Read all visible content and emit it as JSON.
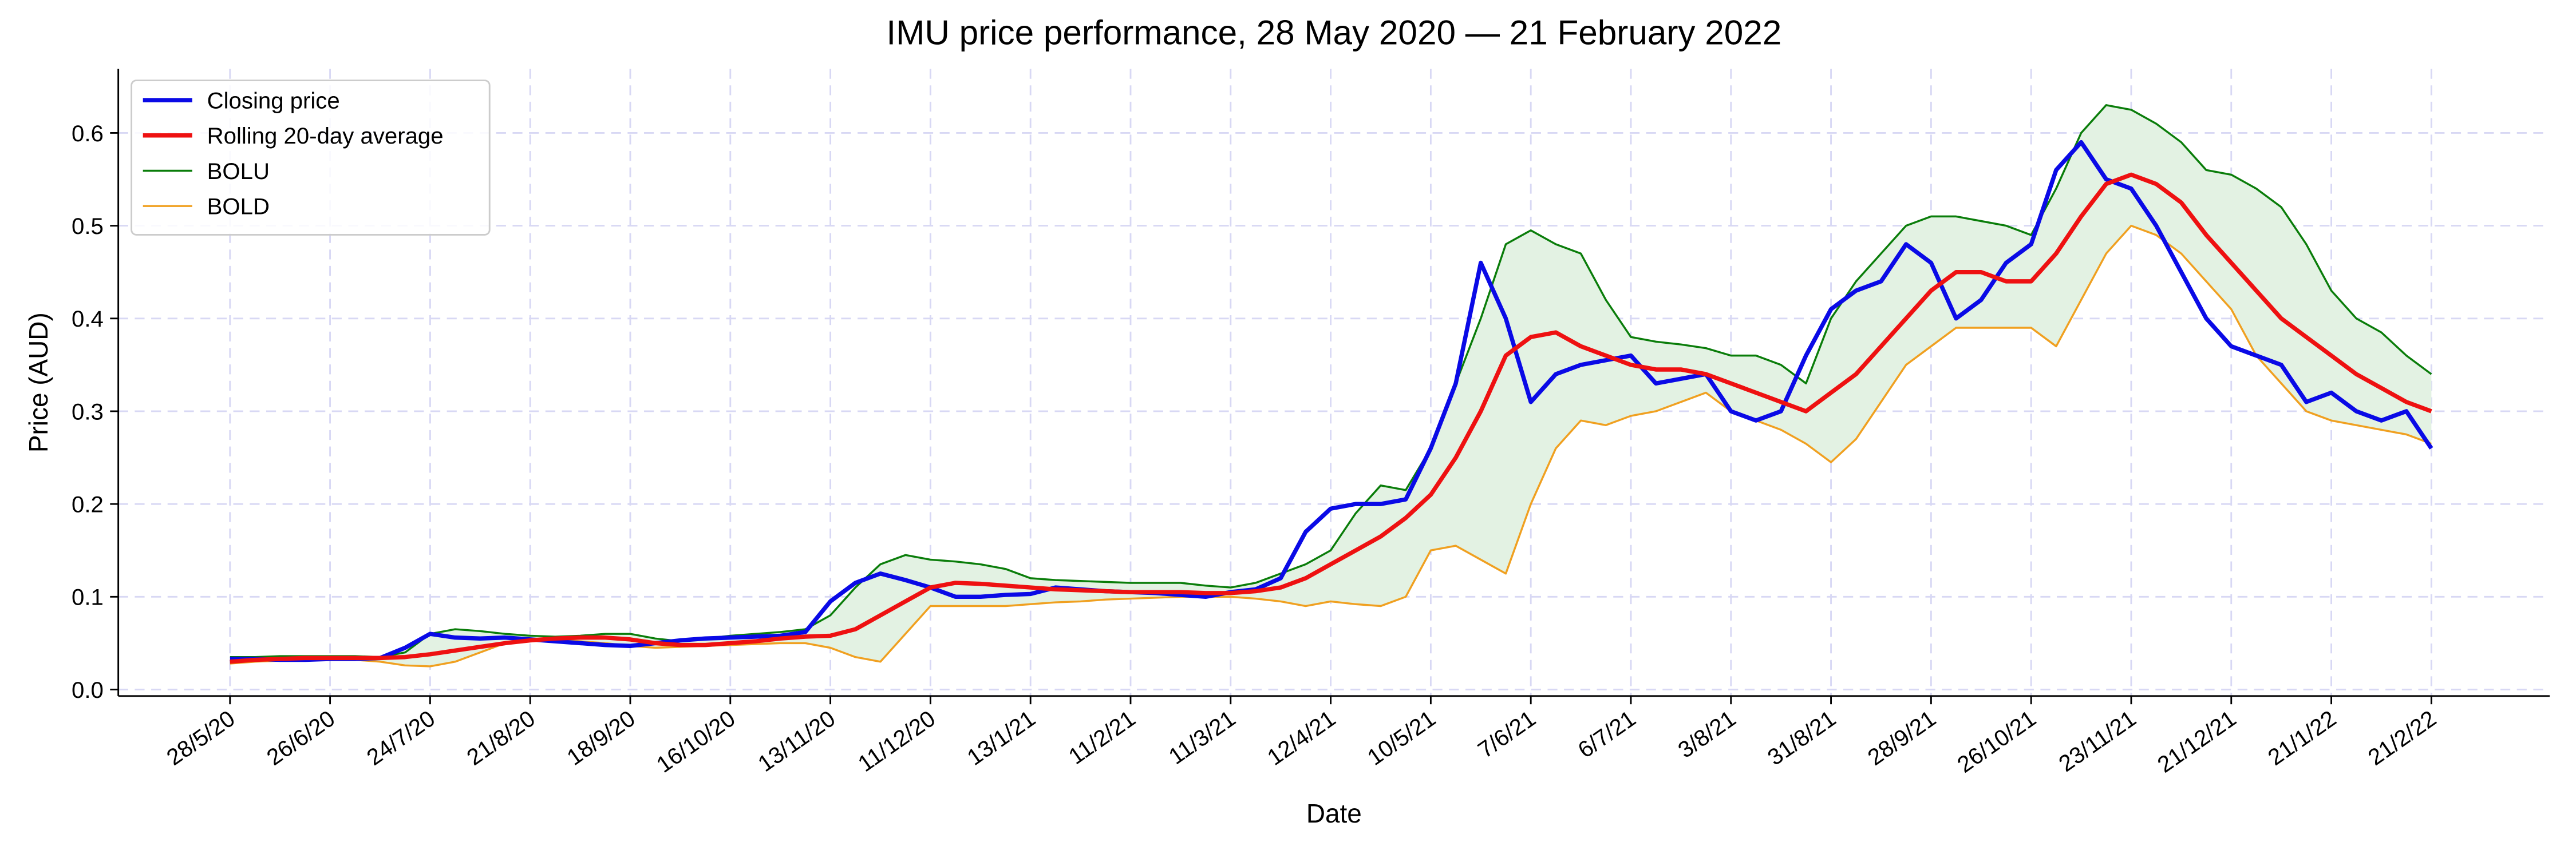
{
  "chart_data": {
    "type": "line",
    "title": "IMU price performance, 28 May 2020 — 21 February 2022",
    "xlabel": "Date",
    "ylabel": "Price (AUD)",
    "categories": [
      "28/5/20",
      null,
      null,
      null,
      "26/6/20",
      null,
      null,
      null,
      "24/7/20",
      null,
      null,
      null,
      "21/8/20",
      null,
      null,
      null,
      "18/9/20",
      null,
      null,
      null,
      "16/10/20",
      null,
      null,
      null,
      "13/11/20",
      null,
      null,
      null,
      "11/12/20",
      null,
      null,
      null,
      "13/1/21",
      null,
      null,
      null,
      "11/2/21",
      null,
      null,
      null,
      "11/3/21",
      null,
      null,
      null,
      "12/4/21",
      null,
      null,
      null,
      "10/5/21",
      null,
      null,
      null,
      "7/6/21",
      null,
      null,
      null,
      "6/7/21",
      null,
      null,
      null,
      "3/8/21",
      null,
      null,
      null,
      "31/8/21",
      null,
      null,
      null,
      "28/9/21",
      null,
      null,
      null,
      "26/10/21",
      null,
      null,
      null,
      "23/11/21",
      null,
      null,
      null,
      "21/12/21",
      null,
      null,
      null,
      "21/1/22",
      null,
      null,
      null,
      "21/2/22"
    ],
    "series": [
      {
        "name": "Closing price",
        "color": "#0a0ae6",
        "values": [
          0.033,
          0.033,
          0.032,
          0.032,
          0.033,
          0.033,
          0.034,
          0.045,
          0.06,
          0.056,
          0.055,
          0.056,
          0.054,
          0.052,
          0.05,
          0.048,
          0.047,
          0.05,
          0.053,
          0.055,
          0.056,
          0.057,
          0.058,
          0.062,
          0.095,
          0.115,
          0.125,
          0.118,
          0.11,
          0.1,
          0.1,
          0.102,
          0.103,
          0.11,
          0.108,
          0.106,
          0.105,
          0.104,
          0.102,
          0.1,
          0.105,
          0.108,
          0.12,
          0.17,
          0.195,
          0.2,
          0.2,
          0.205,
          0.26,
          0.33,
          0.46,
          0.4,
          0.31,
          0.34,
          0.35,
          0.355,
          0.36,
          0.33,
          0.335,
          0.34,
          0.3,
          0.29,
          0.3,
          0.36,
          0.41,
          0.43,
          0.44,
          0.48,
          0.46,
          0.4,
          0.42,
          0.46,
          0.48,
          0.56,
          0.59,
          0.55,
          0.54,
          0.5,
          0.45,
          0.4,
          0.37,
          0.36,
          0.35,
          0.31,
          0.32,
          0.3,
          0.29,
          0.3,
          0.26
        ]
      },
      {
        "name": "Rolling 20-day average",
        "color": "#ee1111",
        "values": [
          0.03,
          0.032,
          0.033,
          0.034,
          0.034,
          0.034,
          0.034,
          0.035,
          0.038,
          0.042,
          0.046,
          0.05,
          0.053,
          0.055,
          0.056,
          0.056,
          0.054,
          0.05,
          0.048,
          0.048,
          0.05,
          0.052,
          0.055,
          0.057,
          0.058,
          0.065,
          0.08,
          0.095,
          0.11,
          0.115,
          0.114,
          0.112,
          0.11,
          0.108,
          0.107,
          0.106,
          0.105,
          0.105,
          0.105,
          0.104,
          0.104,
          0.106,
          0.11,
          0.12,
          0.135,
          0.15,
          0.165,
          0.185,
          0.21,
          0.25,
          0.3,
          0.36,
          0.38,
          0.385,
          0.37,
          0.36,
          0.35,
          0.345,
          0.345,
          0.34,
          0.33,
          0.32,
          0.31,
          0.3,
          0.32,
          0.34,
          0.37,
          0.4,
          0.43,
          0.45,
          0.45,
          0.44,
          0.44,
          0.47,
          0.51,
          0.545,
          0.555,
          0.545,
          0.525,
          0.49,
          0.46,
          0.43,
          0.4,
          0.38,
          0.36,
          0.34,
          0.325,
          0.31,
          0.3
        ]
      },
      {
        "name": "BOLU",
        "color": "#0a7d0a",
        "values": [
          0.035,
          0.035,
          0.036,
          0.036,
          0.036,
          0.036,
          0.035,
          0.04,
          0.06,
          0.065,
          0.063,
          0.06,
          0.058,
          0.057,
          0.058,
          0.06,
          0.06,
          0.055,
          0.052,
          0.055,
          0.058,
          0.06,
          0.062,
          0.065,
          0.08,
          0.11,
          0.135,
          0.145,
          0.14,
          0.138,
          0.135,
          0.13,
          0.12,
          0.118,
          0.117,
          0.116,
          0.115,
          0.115,
          0.115,
          0.112,
          0.11,
          0.115,
          0.125,
          0.135,
          0.15,
          0.19,
          0.22,
          0.215,
          0.26,
          0.33,
          0.4,
          0.48,
          0.495,
          0.48,
          0.47,
          0.42,
          0.38,
          0.375,
          0.372,
          0.368,
          0.36,
          0.36,
          0.35,
          0.33,
          0.4,
          0.44,
          0.47,
          0.5,
          0.51,
          0.51,
          0.505,
          0.5,
          0.49,
          0.54,
          0.6,
          0.63,
          0.625,
          0.61,
          0.59,
          0.56,
          0.555,
          0.54,
          0.52,
          0.48,
          0.43,
          0.4,
          0.385,
          0.36,
          0.34
        ]
      },
      {
        "name": "BOLD",
        "color": "#f0a020",
        "values": [
          0.028,
          0.03,
          0.031,
          0.032,
          0.032,
          0.032,
          0.03,
          0.026,
          0.025,
          0.03,
          0.04,
          0.05,
          0.055,
          0.054,
          0.052,
          0.05,
          0.047,
          0.045,
          0.046,
          0.047,
          0.048,
          0.049,
          0.05,
          0.05,
          0.045,
          0.035,
          0.03,
          0.06,
          0.09,
          0.09,
          0.09,
          0.09,
          0.092,
          0.094,
          0.095,
          0.097,
          0.098,
          0.099,
          0.1,
          0.1,
          0.1,
          0.098,
          0.095,
          0.09,
          0.095,
          0.092,
          0.09,
          0.1,
          0.15,
          0.155,
          0.14,
          0.125,
          0.2,
          0.26,
          0.29,
          0.285,
          0.295,
          0.3,
          0.31,
          0.32,
          0.3,
          0.29,
          0.28,
          0.265,
          0.245,
          0.27,
          0.31,
          0.35,
          0.37,
          0.39,
          0.39,
          0.39,
          0.39,
          0.37,
          0.42,
          0.47,
          0.5,
          0.49,
          0.47,
          0.44,
          0.41,
          0.36,
          0.33,
          0.3,
          0.29,
          0.285,
          0.28,
          0.275,
          0.265
        ]
      }
    ],
    "band_fill": "#e3f2e3",
    "ylim": [
      -0.007,
      0.669
    ],
    "yticks": [
      {
        "value": 0,
        "label": "0.0"
      },
      0.1,
      0.2,
      0.3,
      0.4,
      0.5,
      0.6
    ],
    "grid": true,
    "legend": "upper left"
  }
}
